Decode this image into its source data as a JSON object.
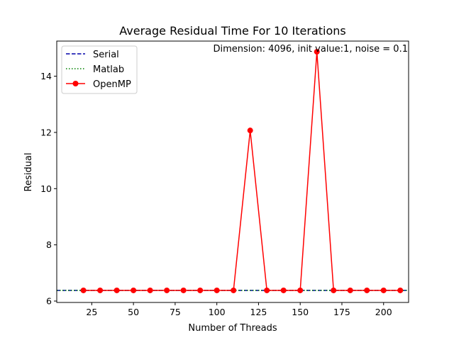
{
  "chart_data": {
    "type": "line",
    "title": "Average Residual Time For 10 Iterations",
    "xlabel": "Number of Threads",
    "ylabel": "Residual",
    "annotation": "Dimension: 4096, init value:1, noise = 0.1",
    "xlim": [
      4,
      215
    ],
    "ylim": [
      5.95,
      15.25
    ],
    "x_ticks": [
      25,
      50,
      75,
      100,
      125,
      150,
      175,
      200
    ],
    "y_ticks": [
      6,
      8,
      10,
      12,
      14
    ],
    "legend_position": "upper-left",
    "grid": false,
    "series": [
      {
        "name": "Serial",
        "style": "dashed",
        "color": "#0000aa",
        "hline": 6.38
      },
      {
        "name": "Matlab",
        "style": "dotted",
        "color": "#008000",
        "hline": 6.38
      },
      {
        "name": "OpenMP",
        "style": "solid-markers",
        "color": "#ff0000",
        "x": [
          20,
          30,
          40,
          50,
          60,
          70,
          80,
          90,
          100,
          110,
          120,
          130,
          140,
          150,
          160,
          170,
          180,
          190,
          200,
          210
        ],
        "values": [
          6.38,
          6.38,
          6.38,
          6.38,
          6.38,
          6.38,
          6.38,
          6.38,
          6.38,
          6.38,
          12.07,
          6.38,
          6.38,
          6.38,
          14.87,
          6.38,
          6.38,
          6.38,
          6.38,
          6.38
        ]
      }
    ]
  }
}
